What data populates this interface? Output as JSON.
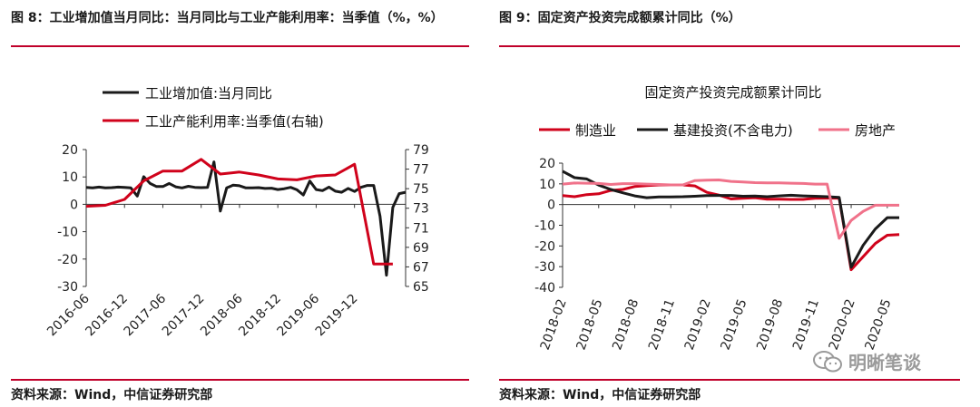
{
  "left": {
    "title": "图 8：工业增加值当月同比：当月同比与工业产能利用率：当季值（%，%）",
    "source": "资料来源：Wind，中信证券研究部"
  },
  "right": {
    "title": "图 9：固定资产投资完成额累计同比（%）",
    "source": "资料来源：Wind，中信证券研究部"
  },
  "watermark": {
    "text": "明晰笔谈",
    "icon": "wechat-icon"
  },
  "colors": {
    "accent_red": "#d0021b",
    "black": "#1a1a1a",
    "pink": "#f0728a",
    "rule": "#c0002a"
  },
  "chart_data": [
    {
      "type": "line",
      "title": "",
      "x_tick_labels": [
        "2016-06",
        "2016-12",
        "2017-06",
        "2017-12",
        "2018-06",
        "2018-12",
        "2019-06",
        "2019-12"
      ],
      "x_range": [
        2016.25,
        2020.417
      ],
      "ylim_left": [
        -30,
        20
      ],
      "yticks_left": [
        "20",
        "10",
        "0",
        "-10",
        "-20",
        "-30"
      ],
      "ylim_right": [
        65,
        79
      ],
      "yticks_right": [
        "79",
        "77",
        "75",
        "73",
        "71",
        "69",
        "67",
        "65"
      ],
      "legend": "top",
      "grid": false,
      "series": [
        {
          "name": "工业增加值:当月同比",
          "axis": "left",
          "color": "#1a1a1a",
          "x": [
            2016.25,
            2016.333,
            2016.417,
            2016.5,
            2016.583,
            2016.667,
            2016.75,
            2016.833,
            2016.917,
            2017.0,
            2017.083,
            2017.167,
            2017.25,
            2017.333,
            2017.417,
            2017.5,
            2017.583,
            2017.667,
            2017.75,
            2017.833,
            2017.917,
            2018.0,
            2018.083,
            2018.167,
            2018.25,
            2018.333,
            2018.417,
            2018.5,
            2018.583,
            2018.667,
            2018.75,
            2018.833,
            2018.917,
            2019.0,
            2019.083,
            2019.167,
            2019.25,
            2019.333,
            2019.417,
            2019.5,
            2019.583,
            2019.667,
            2019.75,
            2019.833,
            2019.917,
            2020.0,
            2020.083,
            2020.167,
            2020.25,
            2020.333,
            2020.417
          ],
          "y": [
            6.2,
            6.0,
            6.3,
            6.0,
            6.1,
            6.3,
            6.2,
            6.0,
            3.0,
            10.1,
            7.6,
            6.5,
            6.5,
            7.6,
            6.4,
            6.0,
            6.6,
            6.2,
            6.1,
            6.2,
            15.5,
            -2.5,
            6.0,
            7.0,
            6.8,
            6.0,
            6.0,
            6.1,
            5.8,
            5.9,
            5.4,
            5.7,
            6.2,
            5.3,
            3.4,
            8.5,
            5.4,
            5.0,
            6.3,
            4.8,
            4.4,
            5.8,
            4.7,
            6.2,
            6.9,
            6.9,
            -4.3,
            -25.9,
            -1.1,
            3.9,
            4.4
          ]
        },
        {
          "name": "工业产能利用率:当季值(右轴)",
          "axis": "right",
          "color": "#d0021b",
          "x": [
            2016.25,
            2016.5,
            2016.75,
            2017.0,
            2017.25,
            2017.5,
            2017.75,
            2018.0,
            2018.25,
            2018.5,
            2018.75,
            2019.0,
            2019.25,
            2019.5,
            2019.75,
            2020.0,
            2020.25
          ],
          "y": [
            73.2,
            73.3,
            73.9,
            75.8,
            76.8,
            76.8,
            78.0,
            76.5,
            76.7,
            76.4,
            76.0,
            75.9,
            76.3,
            76.4,
            77.5,
            67.3,
            67.3
          ]
        }
      ]
    },
    {
      "type": "line",
      "title": "固定资产投资完成额累计同比",
      "x_tick_labels": [
        "2018-02",
        "2018-05",
        "2018-08",
        "2018-11",
        "2019-02",
        "2019-05",
        "2019-08",
        "2019-11",
        "2020-02",
        "2020-05"
      ],
      "x_range": [
        2018.0,
        2020.333
      ],
      "ylim": [
        -40,
        20
      ],
      "yticks": [
        "20",
        "10",
        "0",
        "-10",
        "-20",
        "-30",
        "-40"
      ],
      "legend": "top",
      "grid": false,
      "series": [
        {
          "name": "制造业",
          "color": "#d0021b",
          "x": [
            2018.0,
            2018.083,
            2018.167,
            2018.25,
            2018.333,
            2018.417,
            2018.5,
            2018.583,
            2018.667,
            2018.75,
            2018.833,
            2018.917,
            2019.0,
            2019.083,
            2019.167,
            2019.25,
            2019.333,
            2019.417,
            2019.5,
            2019.583,
            2019.667,
            2019.75,
            2019.833,
            2019.917,
            2020.0,
            2020.083,
            2020.167,
            2020.25,
            2020.333
          ],
          "y": [
            4.3,
            3.8,
            4.8,
            5.2,
            6.8,
            7.3,
            8.7,
            9.2,
            9.5,
            9.5,
            9.5,
            9.0,
            5.9,
            4.6,
            2.7,
            3.0,
            3.3,
            2.6,
            2.6,
            2.5,
            2.5,
            3.0,
            3.1,
            3.1,
            -31.5,
            -25.2,
            -18.8,
            -14.8,
            -14.5
          ]
        },
        {
          "name": "基建投资(不含电力)",
          "color": "#1a1a1a",
          "x": [
            2018.0,
            2018.083,
            2018.167,
            2018.25,
            2018.333,
            2018.417,
            2018.5,
            2018.583,
            2018.667,
            2018.75,
            2018.833,
            2018.917,
            2019.0,
            2019.083,
            2019.167,
            2019.25,
            2019.333,
            2019.417,
            2019.5,
            2019.583,
            2019.667,
            2019.75,
            2019.833,
            2019.917,
            2020.0,
            2020.083,
            2020.167,
            2020.25,
            2020.333
          ],
          "y": [
            16.1,
            13.0,
            12.4,
            9.4,
            7.3,
            5.7,
            4.2,
            3.3,
            3.7,
            3.7,
            3.8,
            4.0,
            4.3,
            4.4,
            4.4,
            4.0,
            4.1,
            3.8,
            4.2,
            4.5,
            4.2,
            4.0,
            3.8,
            3.5,
            -30.3,
            -19.7,
            -11.8,
            -6.3,
            -6.3
          ]
        },
        {
          "name": "房地产",
          "color": "#f0728a",
          "x": [
            2018.0,
            2018.083,
            2018.167,
            2018.25,
            2018.333,
            2018.417,
            2018.5,
            2018.583,
            2018.667,
            2018.75,
            2018.833,
            2018.917,
            2019.0,
            2019.083,
            2019.167,
            2019.25,
            2019.333,
            2019.417,
            2019.5,
            2019.583,
            2019.667,
            2019.75,
            2019.833,
            2019.917,
            2020.0,
            2020.083,
            2020.167,
            2020.25,
            2020.333
          ],
          "y": [
            9.9,
            10.4,
            10.3,
            10.2,
            9.7,
            10.1,
            10.1,
            9.9,
            9.7,
            9.5,
            9.5,
            11.6,
            11.8,
            11.9,
            11.2,
            10.9,
            10.6,
            10.5,
            10.5,
            10.3,
            10.2,
            9.9,
            9.9,
            -16.3,
            -7.7,
            -3.3,
            -0.3,
            -0.3,
            -0.3
          ]
        }
      ]
    }
  ]
}
